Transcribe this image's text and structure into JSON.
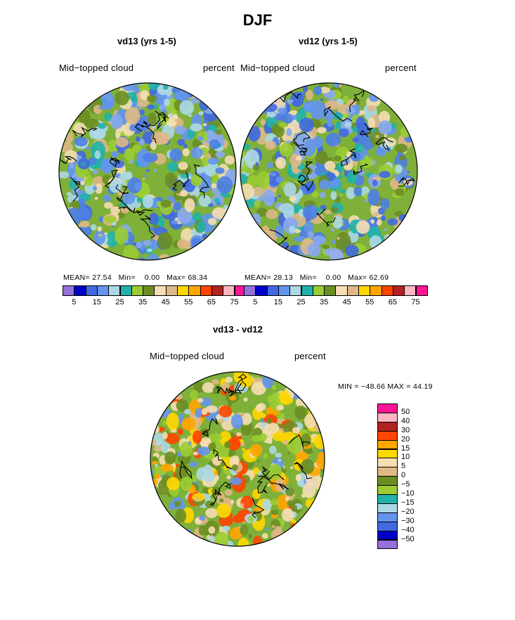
{
  "title": "DJF",
  "panels": [
    {
      "title": "vd13 (yrs 1-5)",
      "variable": "Mid−topped cloud",
      "units": "percent",
      "stats": {
        "mean_label": "MEAN=",
        "mean": "27.54",
        "min_label": "Min=",
        "min": "0.00",
        "max_label": "Max=",
        "max": "68.34"
      }
    },
    {
      "title": "vd12 (yrs 1-5)",
      "variable": "Mid−topped cloud",
      "units": "percent",
      "stats": {
        "mean_label": "MEAN=",
        "mean": "28.13",
        "min_label": "Min=",
        "min": "0.00",
        "max_label": "Max=",
        "max": "62.69"
      }
    }
  ],
  "diff": {
    "title": "vd13 - vd12",
    "variable": "Mid−topped cloud",
    "units": "percent",
    "range_text": "MIN = −48.66 MAX =   44.19"
  },
  "chart_data": [
    {
      "type": "heatmap",
      "projection": "north polar stereographic",
      "title": "vd13 (yrs 1-5)",
      "label": "Mid-topped cloud",
      "units": "percent",
      "mean": 27.54,
      "min": 0.0,
      "max": 68.34,
      "colorbar_levels": [
        5,
        10,
        15,
        20,
        25,
        30,
        35,
        40,
        45,
        50,
        55,
        60,
        65,
        70,
        75
      ],
      "colorbar_tick_labels": [
        "5",
        "15",
        "25",
        "35",
        "45",
        "55",
        "65",
        "75"
      ],
      "colors": [
        "#9370db",
        "#0000c8",
        "#4169e1",
        "#6495ed",
        "#add8e6",
        "#20b2aa",
        "#9acd32",
        "#6b8e23",
        "#f5deb3",
        "#deb887",
        "#ffd700",
        "#ffa500",
        "#ff4500",
        "#b22222",
        "#ffb6c1",
        "#ff1493"
      ]
    },
    {
      "type": "heatmap",
      "projection": "north polar stereographic",
      "title": "vd12 (yrs 1-5)",
      "label": "Mid-topped cloud",
      "units": "percent",
      "mean": 28.13,
      "min": 0.0,
      "max": 62.69,
      "colorbar_levels": [
        5,
        10,
        15,
        20,
        25,
        30,
        35,
        40,
        45,
        50,
        55,
        60,
        65,
        70,
        75
      ],
      "colorbar_tick_labels": [
        "5",
        "15",
        "25",
        "35",
        "45",
        "55",
        "65",
        "75"
      ],
      "colors": [
        "#9370db",
        "#0000c8",
        "#4169e1",
        "#6495ed",
        "#add8e6",
        "#20b2aa",
        "#9acd32",
        "#6b8e23",
        "#f5deb3",
        "#deb887",
        "#ffd700",
        "#ffa500",
        "#ff4500",
        "#b22222",
        "#ffb6c1",
        "#ff1493"
      ]
    },
    {
      "type": "heatmap",
      "projection": "north polar stereographic",
      "title": "vd13 - vd12",
      "label": "Mid-topped cloud",
      "units": "percent",
      "min": -48.66,
      "max": 44.19,
      "colorbar_levels": [
        -50,
        -40,
        -30,
        -20,
        -15,
        -10,
        -5,
        0,
        5,
        10,
        15,
        20,
        30,
        40,
        50
      ],
      "colorbar_tick_labels": [
        "50",
        "40",
        "30",
        "20",
        "15",
        "10",
        "5",
        "0",
        "−5",
        "−10",
        "−15",
        "−20",
        "−30",
        "−40",
        "−50"
      ],
      "colors_top_to_bottom": [
        "#ff1493",
        "#ffb6c1",
        "#b22222",
        "#ff4500",
        "#ffa500",
        "#ffd700",
        "#f5deb3",
        "#deb887",
        "#6b8e23",
        "#9acd32",
        "#20b2aa",
        "#add8e6",
        "#6495ed",
        "#4169e1",
        "#0000c8",
        "#9370db"
      ]
    }
  ]
}
